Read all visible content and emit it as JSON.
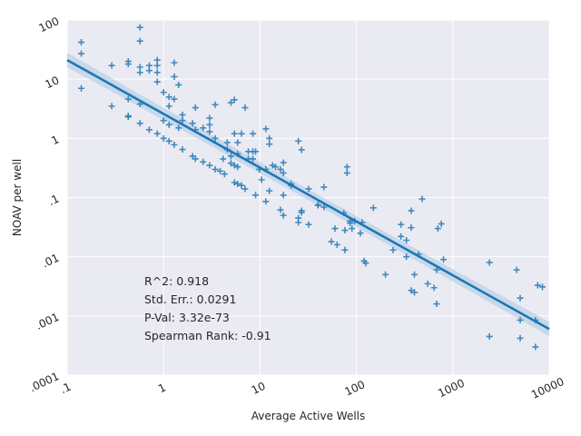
{
  "chart_data": {
    "type": "scatter",
    "xlabel": "Average Active Wells",
    "ylabel": "NOAV per well",
    "x_scale": "log",
    "y_scale": "log",
    "xlim": [
      0.1,
      10000
    ],
    "ylim": [
      0.0001,
      100
    ],
    "x_ticks": [
      {
        "value": 0.1,
        "label": ".1"
      },
      {
        "value": 1,
        "label": "1"
      },
      {
        "value": 10,
        "label": "10"
      },
      {
        "value": 100,
        "label": "100"
      },
      {
        "value": 1000,
        "label": "1000"
      },
      {
        "value": 10000,
        "label": "10000"
      }
    ],
    "y_ticks": [
      {
        "value": 0.0001,
        "label": ".0001"
      },
      {
        "value": 0.001,
        "label": ".001"
      },
      {
        "value": 0.01,
        "label": ".01"
      },
      {
        "value": 0.1,
        "label": ".1"
      },
      {
        "value": 1,
        "label": "1"
      },
      {
        "value": 10,
        "label": "10"
      },
      {
        "value": 100,
        "label": "100"
      }
    ],
    "grid": true,
    "colors": {
      "background": "#eaeaf2",
      "grid": "#ffffff",
      "marker": "#2f7fb8",
      "line": "#1f77b4",
      "band": "#a9c8e3"
    },
    "regression": {
      "x_start": 0.1,
      "y_start": 21,
      "x_end": 10000,
      "y_end": 0.0006
    },
    "annotations": [
      "R^2: 0.918",
      "Std. Err.: 0.0291",
      "P-Val: 3.32e-73",
      "Spearman Rank: -0.91"
    ],
    "points": [
      [
        0.14,
        42
      ],
      [
        0.14,
        27
      ],
      [
        0.14,
        7
      ],
      [
        0.29,
        17
      ],
      [
        0.29,
        3.5
      ],
      [
        0.43,
        20
      ],
      [
        0.43,
        18
      ],
      [
        0.43,
        4.6
      ],
      [
        0.43,
        2.4
      ],
      [
        0.43,
        2.3
      ],
      [
        0.57,
        75
      ],
      [
        0.57,
        44
      ],
      [
        0.57,
        16
      ],
      [
        0.57,
        13
      ],
      [
        0.57,
        3.8
      ],
      [
        0.57,
        1.8
      ],
      [
        0.71,
        17
      ],
      [
        0.71,
        14
      ],
      [
        0.71,
        1.4
      ],
      [
        0.86,
        21
      ],
      [
        0.86,
        17
      ],
      [
        0.86,
        13
      ],
      [
        0.86,
        9
      ],
      [
        0.86,
        1.2
      ],
      [
        1.0,
        6
      ],
      [
        1.0,
        2
      ],
      [
        1.0,
        1.0
      ],
      [
        1.14,
        5
      ],
      [
        1.14,
        3.5
      ],
      [
        1.14,
        1.7
      ],
      [
        1.14,
        0.9
      ],
      [
        1.29,
        19
      ],
      [
        1.29,
        11
      ],
      [
        1.29,
        4.6
      ],
      [
        1.29,
        0.78
      ],
      [
        1.43,
        8
      ],
      [
        1.43,
        1.5
      ],
      [
        1.57,
        2.5
      ],
      [
        1.57,
        2.0
      ],
      [
        1.57,
        0.65
      ],
      [
        2.0,
        1.8
      ],
      [
        2.0,
        0.5
      ],
      [
        2.14,
        3.3
      ],
      [
        2.14,
        1.4
      ],
      [
        2.14,
        0.45
      ],
      [
        2.57,
        1.5
      ],
      [
        2.57,
        0.4
      ],
      [
        3.0,
        2.2
      ],
      [
        3.0,
        1.7
      ],
      [
        3.0,
        1.3
      ],
      [
        3.0,
        0.35
      ],
      [
        3.43,
        3.7
      ],
      [
        3.43,
        1.0
      ],
      [
        3.43,
        0.3
      ],
      [
        3.86,
        0.28
      ],
      [
        4.14,
        0.45
      ],
      [
        4.29,
        0.25
      ],
      [
        4.57,
        0.85
      ],
      [
        4.57,
        0.65
      ],
      [
        5.0,
        4.0
      ],
      [
        5.0,
        0.5
      ],
      [
        5.0,
        0.38
      ],
      [
        5.43,
        4.5
      ],
      [
        5.43,
        1.2
      ],
      [
        5.43,
        0.35
      ],
      [
        5.43,
        0.18
      ],
      [
        5.86,
        0.85
      ],
      [
        5.86,
        0.55
      ],
      [
        5.86,
        0.33
      ],
      [
        5.86,
        0.17
      ],
      [
        6.43,
        1.2
      ],
      [
        6.43,
        0.16
      ],
      [
        7.0,
        3.3
      ],
      [
        7.0,
        0.14
      ],
      [
        7.57,
        0.6
      ],
      [
        7.57,
        0.45
      ],
      [
        8.43,
        1.2
      ],
      [
        8.43,
        0.6
      ],
      [
        8.43,
        0.45
      ],
      [
        9.0,
        0.6
      ],
      [
        9.0,
        0.11
      ],
      [
        9.86,
        0.3
      ],
      [
        10.4,
        0.2
      ],
      [
        11.5,
        1.45
      ],
      [
        11.5,
        0.3
      ],
      [
        11.5,
        0.086
      ],
      [
        12.5,
        1.0
      ],
      [
        12.5,
        0.8
      ],
      [
        12.5,
        0.13
      ],
      [
        13.5,
        0.35
      ],
      [
        14.5,
        0.33
      ],
      [
        16.3,
        0.3
      ],
      [
        16.3,
        0.062
      ],
      [
        17.5,
        0.39
      ],
      [
        17.5,
        0.26
      ],
      [
        17.5,
        0.05
      ],
      [
        17.5,
        0.11
      ],
      [
        21,
        0.17
      ],
      [
        21,
        0.16
      ],
      [
        25,
        0.9
      ],
      [
        25,
        0.045
      ],
      [
        25,
        0.038
      ],
      [
        27,
        0.64
      ],
      [
        27,
        0.06
      ],
      [
        27,
        0.056
      ],
      [
        32,
        0.14
      ],
      [
        32,
        0.035
      ],
      [
        40,
        0.075
      ],
      [
        40,
        0.074
      ],
      [
        46,
        0.15
      ],
      [
        46,
        0.069
      ],
      [
        55,
        0.018
      ],
      [
        60,
        0.03
      ],
      [
        63,
        0.016
      ],
      [
        74,
        0.055
      ],
      [
        76,
        0.028
      ],
      [
        76,
        0.013
      ],
      [
        80,
        0.33
      ],
      [
        80,
        0.26
      ],
      [
        86,
        0.04
      ],
      [
        86,
        0.037
      ],
      [
        90,
        0.03
      ],
      [
        96,
        0.04
      ],
      [
        110,
        0.025
      ],
      [
        115,
        0.038
      ],
      [
        120,
        0.0085
      ],
      [
        125,
        0.0078
      ],
      [
        150,
        0.067
      ],
      [
        200,
        0.005
      ],
      [
        240,
        0.013
      ],
      [
        290,
        0.035
      ],
      [
        290,
        0.022
      ],
      [
        330,
        0.019
      ],
      [
        330,
        0.01
      ],
      [
        370,
        0.06
      ],
      [
        370,
        0.031
      ],
      [
        370,
        0.0027
      ],
      [
        400,
        0.005
      ],
      [
        400,
        0.0025
      ],
      [
        440,
        0.011
      ],
      [
        480,
        0.095
      ],
      [
        550,
        0.0035
      ],
      [
        640,
        0.003
      ],
      [
        680,
        0.006
      ],
      [
        680,
        0.0016
      ],
      [
        700,
        0.03
      ],
      [
        760,
        0.036
      ],
      [
        800,
        0.009
      ],
      [
        2400,
        0.008
      ],
      [
        2400,
        0.00045
      ],
      [
        4600,
        0.006
      ],
      [
        5000,
        0.002
      ],
      [
        5000,
        0.00085
      ],
      [
        5000,
        0.00042
      ],
      [
        7200,
        0.00085
      ],
      [
        7200,
        0.0003
      ],
      [
        7600,
        0.0033
      ],
      [
        8500,
        0.0031
      ]
    ]
  }
}
